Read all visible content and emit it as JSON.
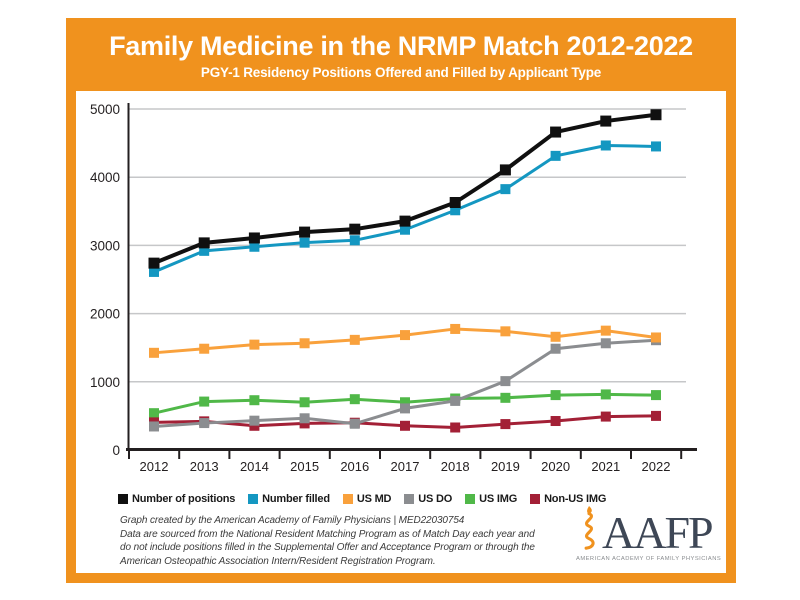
{
  "header": {
    "title": "Family Medicine in the NRMP Match 2012-2022",
    "subtitle": "PGY-1 Residency Positions Offered and Filled by Applicant Type"
  },
  "chart_data": {
    "type": "line",
    "title": "Family Medicine in the NRMP Match 2012-2022",
    "subtitle": "PGY-1 Residency Positions Offered and Filled by Applicant Type",
    "x": [
      "2012",
      "2013",
      "2014",
      "2015",
      "2016",
      "2017",
      "2018",
      "2019",
      "2020",
      "2021",
      "2022"
    ],
    "series": [
      {
        "name": "Number of positions",
        "color": "#101010",
        "values": [
          2740,
          3037,
          3109,
          3195,
          3238,
          3356,
          3629,
          4107,
          4662,
          4823,
          4916
        ]
      },
      {
        "name": "Number filled",
        "color": "#1497C1",
        "values": [
          2611,
          2920,
          2980,
          3040,
          3075,
          3230,
          3515,
          3825,
          4313,
          4465,
          4451
        ]
      },
      {
        "name": "US MD",
        "color": "#F9A13C",
        "values": [
          1425,
          1485,
          1545,
          1565,
          1615,
          1685,
          1775,
          1740,
          1660,
          1750,
          1650
        ]
      },
      {
        "name": "US DO",
        "color": "#8B8D90",
        "values": [
          345,
          395,
          430,
          465,
          385,
          610,
          720,
          1010,
          1485,
          1565,
          1610
        ]
      },
      {
        "name": "US IMG",
        "color": "#50B848",
        "values": [
          540,
          710,
          730,
          700,
          745,
          700,
          755,
          765,
          805,
          815,
          805
        ]
      },
      {
        "name": "Non-US IMG",
        "color": "#A32036",
        "values": [
          405,
          420,
          355,
          390,
          400,
          355,
          330,
          380,
          425,
          490,
          500
        ]
      }
    ],
    "xlabel": "",
    "ylabel": "",
    "ylim": [
      0,
      5000
    ],
    "yticks": [
      0,
      1000,
      2000,
      3000,
      4000,
      5000
    ],
    "grid": "horizontal",
    "gridline_color": "#C6C7C9",
    "marker": "square",
    "legend_position": "bottom-left"
  },
  "footer": {
    "lines": [
      "Graph created by the American Academy of Family Physicians | MED22030754",
      "Data are sourced from the National Resident Matching Program as of Match Day each year and",
      "do not include positions filled in the Supplemental Offer and Acceptance Program or through the",
      "American Osteopathic Association Intern/Resident Registration Program."
    ]
  },
  "logo": {
    "acronym": "AAFP",
    "tagline": "AMERICAN ACADEMY OF FAMILY PHYSICIANS"
  },
  "colors": {
    "frame_orange": "#F0921E",
    "panel_white": "#FFFFFF",
    "axis_black": "#231F20",
    "logo_navy": "#3E4756",
    "logo_gray": "#8A8D90"
  }
}
